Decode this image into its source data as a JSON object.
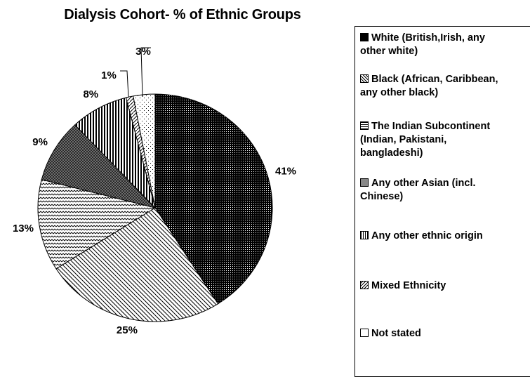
{
  "chart_data": {
    "type": "pie",
    "title": "Dialysis Cohort- %  of Ethnic Groups",
    "categories": [
      "White (British,Irish, any other white)",
      "Black (African, Caribbean, any other black)",
      "The Indian Subcontinent (Indian, Pakistani, bangladeshi)",
      "Any other Asian (incl. Chinese)",
      "Any other ethnic origin",
      "Mixed Ethnicity",
      "Not stated"
    ],
    "values": [
      41,
      25,
      13,
      9,
      8,
      1,
      3
    ],
    "data_labels": [
      "41%",
      "25%",
      "13%",
      "9%",
      "8%",
      "1%",
      "3%"
    ],
    "legend_labels": [
      "White (British,Irish, any\nother white)",
      "Black (African, Caribbean,\nany other black)",
      "The Indian Subcontinent\n(Indian, Pakistani,\nbangladeshi)",
      "Any other Asian (incl.\nChinese)",
      "Any other ethnic origin",
      "Mixed Ethnicity",
      "Not stated"
    ],
    "patterns": [
      "dense-dots",
      "diagonal-down",
      "wave",
      "crosshatch",
      "vertical",
      "diagonal-up",
      "sparse-dots"
    ],
    "legend_position": "right",
    "start": "top",
    "direction": "clockwise"
  }
}
